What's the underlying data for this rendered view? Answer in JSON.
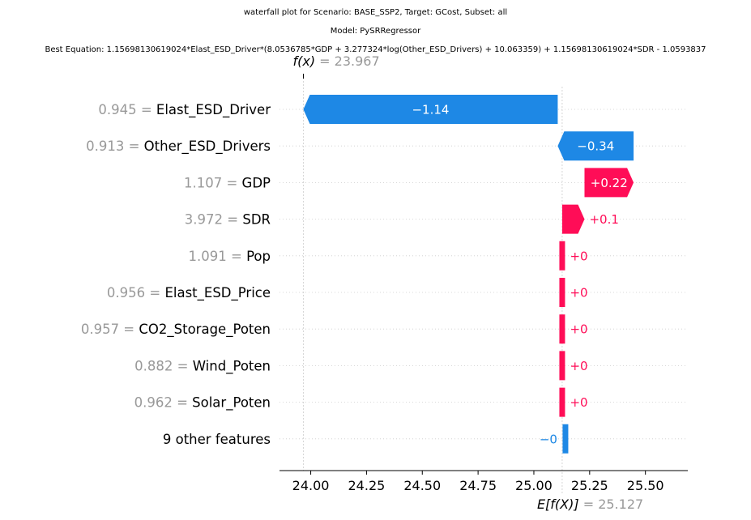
{
  "titles": {
    "line1": "waterfall plot for Scenario: BASE_SSP2, Target: GCost, Subset: all",
    "line2": "Model: PySRRegressor",
    "line3": "Best Equation: 1.15698130619024*Elast_ESD_Driver*(8.0536785*GDP + 3.277324*log(Other_ESD_Drivers) + 10.063359) + 1.15698130619024*SDR - 1.0593837"
  },
  "chart_data": {
    "type": "waterfall",
    "fx_label": "f(x)",
    "fx_value": "23.967",
    "fx_numeric": 23.967,
    "efx_label": "E[f(X)]",
    "efx_value": "25.127",
    "efx_numeric": 25.127,
    "xlim": [
      23.86,
      25.69
    ],
    "xticks": [
      24.0,
      24.25,
      24.5,
      24.75,
      25.0,
      25.25,
      25.5
    ],
    "xtick_labels": [
      "24.00",
      "24.25",
      "24.50",
      "24.75",
      "25.00",
      "25.25",
      "25.50"
    ],
    "features": [
      {
        "value": "0.945",
        "name": "Elast_ESD_Driver",
        "start": 25.107,
        "end": 23.967,
        "label": "−1.14",
        "sign": "neg"
      },
      {
        "value": "0.913",
        "name": "Other_ESD_Drivers",
        "start": 25.447,
        "end": 25.107,
        "label": "−0.34",
        "sign": "neg"
      },
      {
        "value": "1.107",
        "name": "GDP",
        "start": 25.227,
        "end": 25.447,
        "label": "+0.22",
        "sign": "pos"
      },
      {
        "value": "3.972",
        "name": "SDR",
        "start": 25.127,
        "end": 25.227,
        "label": "+0.1",
        "sign": "pos"
      },
      {
        "value": "1.091",
        "name": "Pop",
        "start": 25.127,
        "end": 25.127,
        "label": "+0",
        "sign": "pos"
      },
      {
        "value": "0.956",
        "name": "Elast_ESD_Price",
        "start": 25.127,
        "end": 25.127,
        "label": "+0",
        "sign": "pos"
      },
      {
        "value": "0.957",
        "name": "CO2_Storage_Poten",
        "start": 25.127,
        "end": 25.127,
        "label": "+0",
        "sign": "pos"
      },
      {
        "value": "0.882",
        "name": "Wind_Poten",
        "start": 25.127,
        "end": 25.127,
        "label": "+0",
        "sign": "pos"
      },
      {
        "value": "0.962",
        "name": "Solar_Poten",
        "start": 25.127,
        "end": 25.127,
        "label": "+0",
        "sign": "pos"
      },
      {
        "value": "",
        "name": "9 other features",
        "start": 25.127,
        "end": 25.127,
        "label": "−0",
        "sign": "neg"
      }
    ],
    "colors": {
      "positive": "#ff0d57",
      "negative": "#1e88e5",
      "value_text": "#999999",
      "grid": "#cccccc"
    }
  }
}
